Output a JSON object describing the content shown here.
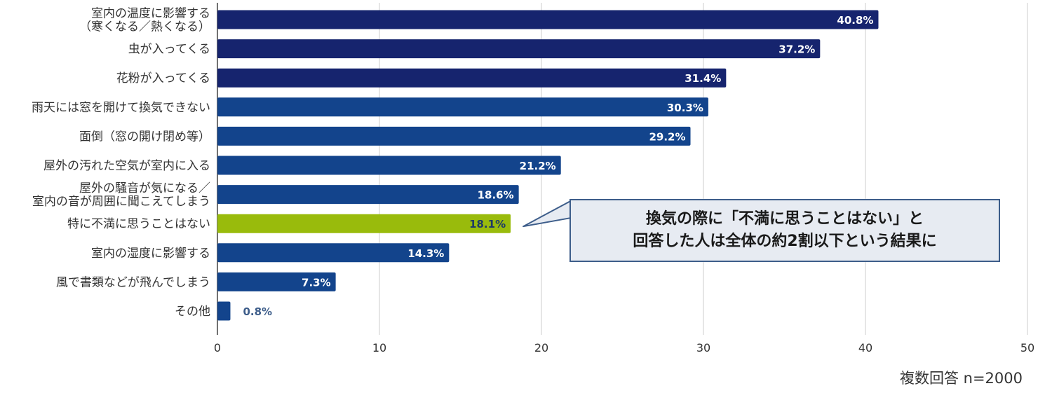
{
  "chart_data": {
    "type": "bar",
    "orientation": "horizontal",
    "categories": [
      [
        "室内の温度に影響する",
        "（寒くなる／熱くなる）"
      ],
      [
        "虫が入ってくる"
      ],
      [
        "花粉が入ってくる"
      ],
      [
        "雨天には窓を開けて換気できない"
      ],
      [
        "面倒（窓の開け閉め等）"
      ],
      [
        "屋外の汚れた空気が室内に入る"
      ],
      [
        "屋外の騒音が気になる／",
        "室内の音が周囲に聞こえてしまう"
      ],
      [
        "特に不満に思うことはない"
      ],
      [
        "室内の湿度に影響する"
      ],
      [
        "風で書類などが飛んでしまう"
      ],
      [
        "その他"
      ]
    ],
    "values": [
      40.8,
      37.2,
      31.4,
      30.3,
      29.2,
      21.2,
      18.6,
      18.1,
      14.3,
      7.3,
      0.8
    ],
    "value_labels": [
      "40.8%",
      "37.2%",
      "31.4%",
      "30.3%",
      "29.2%",
      "21.2%",
      "18.6%",
      "18.1%",
      "14.3%",
      "7.3%",
      "0.8%"
    ],
    "bar_colors": [
      "#16246e",
      "#16246e",
      "#16246e",
      "#13448c",
      "#13448c",
      "#13448c",
      "#13448c",
      "#99bb0c",
      "#13448c",
      "#13448c",
      "#13448c"
    ],
    "value_label_colors": [
      "#ffffff",
      "#ffffff",
      "#ffffff",
      "#ffffff",
      "#ffffff",
      "#ffffff",
      "#ffffff",
      "#1f3a66",
      "#ffffff",
      "#ffffff",
      "#3d5d8a"
    ],
    "xlim": [
      0,
      50
    ],
    "xticks": [
      0,
      10,
      20,
      30,
      40,
      50
    ],
    "grid": true,
    "footnote": "複数回答 n=2000",
    "annotation": {
      "lines": [
        "換気の際に「不満に思うことはない」と",
        "回答した人は全体の約2割以下という結果に"
      ],
      "points_to_category_index": 7
    }
  }
}
